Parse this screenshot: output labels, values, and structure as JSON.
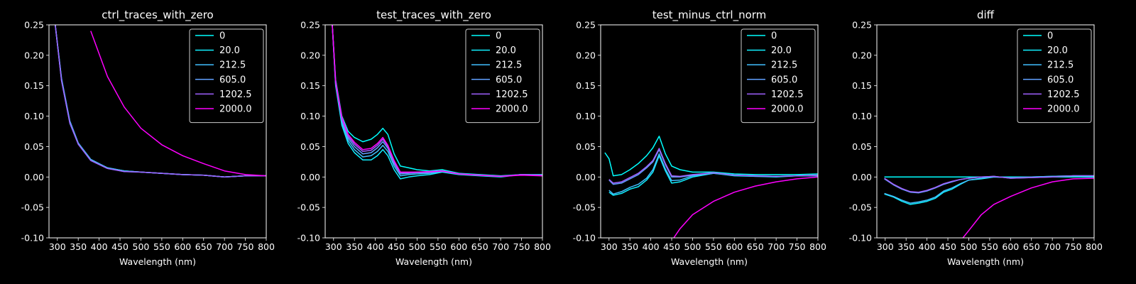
{
  "colors": {
    "background": "#000000",
    "foreground": "#ffffff",
    "series": [
      "#00ffff",
      "#10efff",
      "#40bfff",
      "#60a0ff",
      "#a060ff",
      "#ff00ff"
    ]
  },
  "chart_data": [
    {
      "type": "line",
      "title": "ctrl_traces_with_zero",
      "xlabel": "Wavelength (nm)",
      "ylabel": "",
      "xlim": [
        280,
        800
      ],
      "ylim": [
        -0.1,
        0.25
      ],
      "xticks": [
        300,
        350,
        400,
        450,
        500,
        550,
        600,
        650,
        700,
        750,
        800
      ],
      "yticks": [
        -0.1,
        -0.05,
        0.0,
        0.05,
        0.1,
        0.15,
        0.2,
        0.25
      ],
      "grid": false,
      "legend_position": "top-right",
      "x": [
        295,
        310,
        330,
        350,
        380,
        420,
        460,
        500,
        550,
        600,
        650,
        700,
        750,
        800
      ],
      "series": [
        {
          "name": "0",
          "values": [
            0.25,
            0.16,
            0.09,
            0.055,
            0.028,
            0.015,
            0.01,
            0.008,
            0.006,
            0.004,
            0.003,
            0.0,
            0.002,
            0.002
          ]
        },
        {
          "name": "20.0",
          "values": [
            0.25,
            0.16,
            0.09,
            0.055,
            0.028,
            0.015,
            0.01,
            0.008,
            0.006,
            0.004,
            0.003,
            0.0,
            0.002,
            0.002
          ]
        },
        {
          "name": "212.5",
          "values": [
            0.25,
            0.162,
            0.092,
            0.056,
            0.029,
            0.015,
            0.01,
            0.008,
            0.006,
            0.004,
            0.003,
            0.0,
            0.002,
            0.002
          ]
        },
        {
          "name": "605.0",
          "values": [
            0.25,
            0.158,
            0.088,
            0.054,
            0.027,
            0.014,
            0.009,
            0.008,
            0.006,
            0.004,
            0.003,
            0.0,
            0.002,
            0.002
          ]
        },
        {
          "name": "1202.5",
          "values": [
            0.25,
            0.158,
            0.089,
            0.054,
            0.027,
            0.014,
            0.009,
            0.008,
            0.006,
            0.004,
            0.003,
            0.0,
            0.002,
            0.002
          ]
        },
        {
          "name": "2000.0",
          "values": [
            null,
            null,
            null,
            null,
            0.24,
            0.165,
            0.115,
            0.08,
            0.053,
            0.035,
            0.022,
            0.01,
            0.004,
            0.002
          ]
        }
      ]
    },
    {
      "type": "line",
      "title": "test_traces_with_zero",
      "xlabel": "Wavelength (nm)",
      "ylabel": "",
      "xlim": [
        280,
        800
      ],
      "ylim": [
        -0.1,
        0.25
      ],
      "xticks": [
        300,
        350,
        400,
        450,
        500,
        550,
        600,
        650,
        700,
        750,
        800
      ],
      "yticks": [
        -0.1,
        -0.05,
        0.0,
        0.05,
        0.1,
        0.15,
        0.2,
        0.25
      ],
      "grid": false,
      "legend_position": "top-right",
      "x": [
        297,
        305,
        320,
        335,
        350,
        370,
        390,
        405,
        418,
        430,
        445,
        460,
        480,
        500,
        530,
        560,
        600,
        650,
        700,
        750,
        800
      ],
      "series": [
        {
          "name": "0",
          "values": [
            0.25,
            0.16,
            0.1,
            0.075,
            0.065,
            0.058,
            0.062,
            0.07,
            0.08,
            0.07,
            0.038,
            0.018,
            0.015,
            0.012,
            0.01,
            0.012,
            0.006,
            0.004,
            0.002,
            0.004,
            0.004
          ]
        },
        {
          "name": "20.0",
          "values": [
            0.25,
            0.15,
            0.085,
            0.055,
            0.04,
            0.028,
            0.028,
            0.035,
            0.045,
            0.035,
            0.012,
            -0.003,
            0.0,
            0.002,
            0.004,
            0.008,
            0.004,
            0.002,
            0.0,
            0.004,
            0.002
          ]
        },
        {
          "name": "212.5",
          "values": [
            0.25,
            0.152,
            0.09,
            0.06,
            0.045,
            0.033,
            0.035,
            0.042,
            0.052,
            0.042,
            0.018,
            0.002,
            0.004,
            0.005,
            0.006,
            0.009,
            0.005,
            0.003,
            0.001,
            0.004,
            0.003
          ]
        },
        {
          "name": "605.0",
          "values": [
            0.25,
            0.154,
            0.093,
            0.064,
            0.05,
            0.038,
            0.04,
            0.048,
            0.058,
            0.047,
            0.022,
            0.005,
            0.006,
            0.007,
            0.007,
            0.01,
            0.005,
            0.003,
            0.001,
            0.004,
            0.003
          ]
        },
        {
          "name": "1202.5",
          "values": [
            0.25,
            0.156,
            0.096,
            0.067,
            0.054,
            0.042,
            0.044,
            0.052,
            0.062,
            0.05,
            0.025,
            0.007,
            0.007,
            0.008,
            0.008,
            0.01,
            0.005,
            0.003,
            0.001,
            0.004,
            0.003
          ]
        },
        {
          "name": "2000.0",
          "values": [
            0.25,
            0.157,
            0.098,
            0.07,
            0.057,
            0.045,
            0.047,
            0.055,
            0.065,
            0.052,
            0.027,
            0.008,
            0.008,
            0.008,
            0.009,
            0.01,
            0.005,
            0.003,
            0.001,
            0.003,
            0.002
          ]
        }
      ]
    },
    {
      "type": "line",
      "title": "test_minus_ctrl_norm",
      "xlabel": "Wavelength (nm)",
      "ylabel": "",
      "xlim": [
        280,
        800
      ],
      "ylim": [
        -0.1,
        0.25
      ],
      "xticks": [
        300,
        350,
        400,
        450,
        500,
        550,
        600,
        650,
        700,
        750,
        800
      ],
      "yticks": [
        -0.1,
        -0.05,
        0.0,
        0.05,
        0.1,
        0.15,
        0.2,
        0.25
      ],
      "grid": false,
      "legend_position": "top-right",
      "x": [
        290,
        300,
        310,
        330,
        350,
        370,
        390,
        405,
        420,
        435,
        450,
        470,
        500,
        550,
        600,
        650,
        700,
        750,
        800
      ],
      "series": [
        {
          "name": "0",
          "values": [
            0.04,
            0.03,
            0.002,
            0.004,
            0.012,
            0.022,
            0.035,
            0.048,
            0.067,
            0.038,
            0.018,
            0.012,
            0.008,
            0.008,
            0.005,
            0.004,
            0.004,
            0.004,
            0.005
          ]
        },
        {
          "name": "20.0",
          "values": [
            null,
            -0.025,
            -0.03,
            -0.027,
            -0.02,
            -0.016,
            -0.005,
            0.008,
            0.035,
            0.01,
            -0.01,
            -0.008,
            0.0,
            0.006,
            0.002,
            0.001,
            0.0,
            0.002,
            0.002
          ]
        },
        {
          "name": "212.5",
          "values": [
            null,
            -0.022,
            -0.028,
            -0.024,
            -0.017,
            -0.012,
            -0.002,
            0.012,
            0.038,
            0.013,
            -0.006,
            -0.005,
            0.002,
            0.006,
            0.003,
            0.001,
            0.001,
            0.002,
            0.002
          ]
        },
        {
          "name": "605.0",
          "values": [
            null,
            -0.005,
            -0.012,
            -0.01,
            -0.003,
            0.004,
            0.015,
            0.025,
            0.045,
            0.02,
            0.0,
            0.0,
            0.003,
            0.007,
            0.003,
            0.002,
            0.001,
            0.002,
            0.003
          ]
        },
        {
          "name": "1202.5",
          "values": [
            null,
            -0.004,
            -0.01,
            -0.008,
            -0.001,
            0.006,
            0.017,
            0.027,
            0.047,
            0.022,
            0.002,
            0.001,
            0.004,
            0.007,
            0.003,
            0.002,
            0.001,
            0.002,
            0.003
          ]
        },
        {
          "name": "2000.0",
          "values": [
            null,
            null,
            null,
            null,
            null,
            null,
            null,
            null,
            null,
            null,
            -0.105,
            -0.085,
            -0.062,
            -0.04,
            -0.025,
            -0.015,
            -0.008,
            -0.003,
            0.0
          ]
        }
      ]
    },
    {
      "type": "line",
      "title": "diff",
      "xlabel": "Wavelength (nm)",
      "ylabel": "",
      "xlim": [
        280,
        800
      ],
      "ylim": [
        -0.1,
        0.25
      ],
      "xticks": [
        300,
        350,
        400,
        450,
        500,
        550,
        600,
        650,
        700,
        750,
        800
      ],
      "yticks": [
        -0.1,
        -0.05,
        0.0,
        0.05,
        0.1,
        0.15,
        0.2,
        0.25
      ],
      "grid": false,
      "legend_position": "top-right",
      "x": [
        298,
        320,
        340,
        360,
        380,
        400,
        420,
        440,
        460,
        480,
        500,
        530,
        560,
        600,
        650,
        700,
        750,
        800
      ],
      "series": [
        {
          "name": "0",
          "values": [
            0.0,
            0.0,
            0.0,
            0.0,
            0.0,
            0.0,
            0.0,
            0.0,
            0.0,
            0.0,
            0.0,
            0.0,
            0.0,
            0.0,
            0.0,
            0.0,
            0.0,
            0.0
          ]
        },
        {
          "name": "20.0",
          "values": [
            -0.028,
            -0.033,
            -0.04,
            -0.045,
            -0.043,
            -0.04,
            -0.035,
            -0.025,
            -0.02,
            -0.012,
            -0.005,
            -0.003,
            0.0,
            -0.001,
            0.0,
            0.001,
            0.002,
            0.002
          ]
        },
        {
          "name": "212.5",
          "values": [
            -0.027,
            -0.032,
            -0.038,
            -0.043,
            -0.041,
            -0.038,
            -0.033,
            -0.023,
            -0.018,
            -0.011,
            -0.005,
            -0.002,
            0.0,
            -0.001,
            0.0,
            0.001,
            0.002,
            0.002
          ]
        },
        {
          "name": "605.0",
          "values": [
            -0.003,
            -0.013,
            -0.02,
            -0.025,
            -0.026,
            -0.023,
            -0.018,
            -0.012,
            -0.008,
            -0.004,
            -0.002,
            0.0,
            0.001,
            -0.002,
            -0.001,
            0.0,
            0.002,
            0.002
          ]
        },
        {
          "name": "1202.5",
          "values": [
            -0.002,
            -0.012,
            -0.019,
            -0.024,
            -0.025,
            -0.022,
            -0.017,
            -0.011,
            -0.007,
            -0.004,
            -0.002,
            0.0,
            0.001,
            -0.002,
            -0.001,
            0.0,
            0.002,
            0.002
          ]
        },
        {
          "name": "2000.0",
          "values": [
            null,
            null,
            null,
            null,
            null,
            null,
            null,
            null,
            null,
            -0.105,
            -0.088,
            -0.062,
            -0.045,
            -0.032,
            -0.018,
            -0.008,
            -0.003,
            -0.002
          ]
        }
      ]
    }
  ]
}
